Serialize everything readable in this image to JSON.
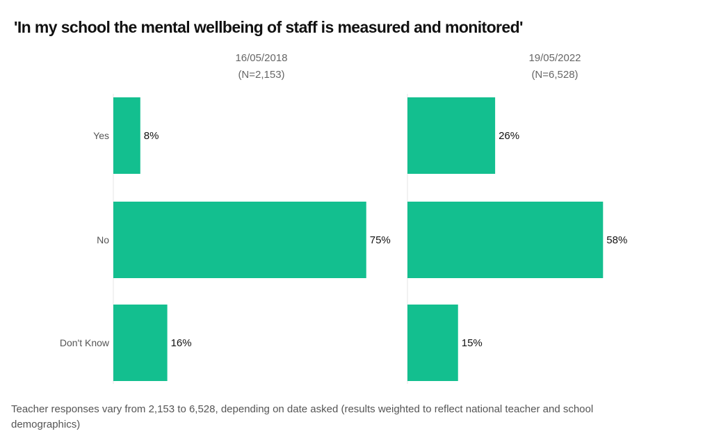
{
  "chart_data": {
    "type": "bar",
    "orientation": "horizontal",
    "title": "'In my school the mental wellbeing of staff is measured and monitored'",
    "categories": [
      "Yes",
      "No",
      "Don't Know"
    ],
    "panels": [
      {
        "date": "16/05/2018",
        "n": "(N=2,153)",
        "values": [
          8,
          75,
          16
        ],
        "labels": [
          "8%",
          "75%",
          "16%"
        ]
      },
      {
        "date": "19/05/2022",
        "n": "(N=6,528)",
        "values": [
          26,
          58,
          15
        ],
        "labels": [
          "26%",
          "58%",
          "15%"
        ]
      }
    ],
    "xlim": [
      0,
      100
    ],
    "grid": false,
    "bar_color": "#13BF8F",
    "footnote": [
      "Teacher responses vary from 2,153 to 6,528, depending on date asked (results weighted to reflect national teacher and school",
      "demographics)"
    ]
  }
}
